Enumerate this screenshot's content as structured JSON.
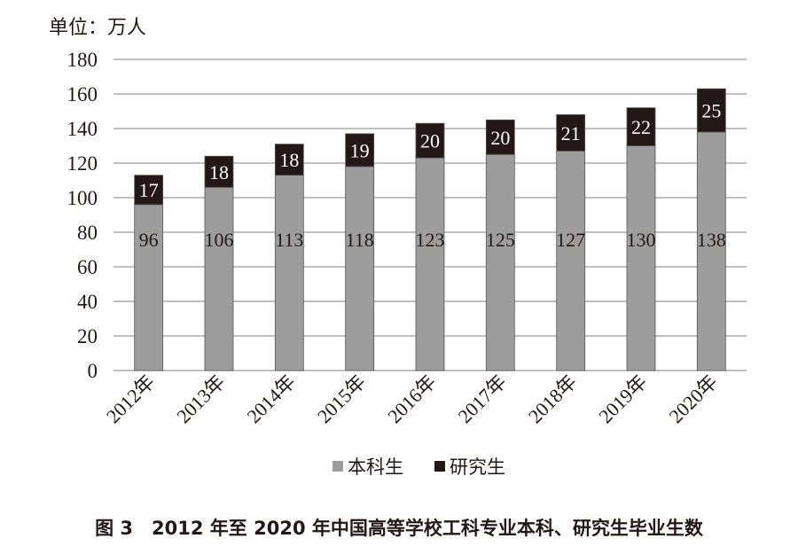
{
  "chart_data": {
    "type": "bar",
    "stacked": true,
    "unit_label": "单位：万人",
    "categories": [
      "2012年",
      "2013年",
      "2014年",
      "2015年",
      "2016年",
      "2017年",
      "2018年",
      "2019年",
      "2020年"
    ],
    "series": [
      {
        "name": "本科生",
        "color": "#9d9d9d",
        "values": [
          96,
          106,
          113,
          118,
          123,
          125,
          127,
          130,
          138
        ]
      },
      {
        "name": "研究生",
        "color": "#231815",
        "values": [
          17,
          18,
          18,
          19,
          20,
          20,
          21,
          22,
          25
        ]
      }
    ],
    "ylim": [
      0,
      180
    ],
    "yticks": [
      0,
      20,
      40,
      60,
      80,
      100,
      120,
      140,
      160,
      180
    ],
    "grid": true,
    "legend": "bottom",
    "caption": "图 3　2012 年至 2020 年中国高等学校工科专业本科、研究生毕业生数"
  }
}
